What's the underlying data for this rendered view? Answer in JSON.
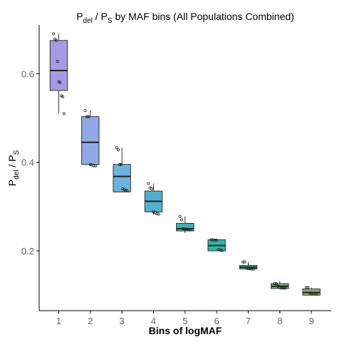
{
  "chart_data": {
    "type": "boxplot",
    "title": {
      "main": "P",
      "sub1": "del",
      "mid": " / P",
      "sub2": "S",
      "rest": " by MAF bins (All Populations Combined)"
    },
    "ylabel": {
      "main": "P",
      "sub1": "del",
      "mid": " / P",
      "sub2": "S"
    },
    "xlabel": "Bins of logMAF",
    "categories": [
      "1",
      "2",
      "3",
      "4",
      "5",
      "6",
      "7",
      "8",
      "9"
    ],
    "ylim": [
      0.065,
      0.71
    ],
    "yticks": [
      0.2,
      0.4,
      0.6
    ],
    "ytick_labels": [
      "0.2",
      "0.4",
      "0.6"
    ],
    "grid": false,
    "legend": "none",
    "boxes": [
      {
        "category": "1",
        "whisker_low": 0.51,
        "q1": 0.562,
        "median": 0.607,
        "q3": 0.675,
        "whisker_high": 0.69,
        "color": "#A49BE2"
      },
      {
        "category": "2",
        "whisker_low": 0.392,
        "q1": 0.395,
        "median": 0.445,
        "q3": 0.503,
        "whisker_high": 0.517,
        "color": "#8FA9E4"
      },
      {
        "category": "3",
        "whisker_low": 0.333,
        "q1": 0.333,
        "median": 0.368,
        "q3": 0.395,
        "whisker_high": 0.433,
        "color": "#6DB3DD"
      },
      {
        "category": "4",
        "whisker_low": 0.282,
        "q1": 0.288,
        "median": 0.312,
        "q3": 0.335,
        "whisker_high": 0.352,
        "color": "#4FB0D0"
      },
      {
        "category": "5",
        "whisker_low": 0.24,
        "q1": 0.245,
        "median": 0.25,
        "q3": 0.262,
        "whisker_high": 0.278,
        "color": "#38B3B3"
      },
      {
        "category": "6",
        "whisker_low": 0.2,
        "q1": 0.2,
        "median": 0.212,
        "q3": 0.225,
        "whisker_high": 0.225,
        "color": "#33B2A6"
      },
      {
        "category": "7",
        "whisker_low": 0.158,
        "q1": 0.159,
        "median": 0.163,
        "q3": 0.167,
        "whisker_high": 0.175,
        "color": "#3FB492"
      },
      {
        "category": "8",
        "whisker_low": 0.115,
        "q1": 0.115,
        "median": 0.12,
        "q3": 0.126,
        "whisker_high": 0.131,
        "color": "#6DB47D"
      },
      {
        "category": "9",
        "whisker_low": 0.099,
        "q1": 0.1,
        "median": 0.106,
        "q3": 0.114,
        "whisker_high": 0.117,
        "color": "#8DB06C"
      }
    ],
    "points": [
      [
        0.69,
        0.678,
        0.675,
        0.628,
        0.582,
        0.58,
        0.55,
        0.548,
        0.51
      ],
      [
        0.517,
        0.503,
        0.503,
        0.395,
        0.394,
        0.392,
        0.392
      ],
      [
        0.433,
        0.428,
        0.395,
        0.395,
        0.34,
        0.338,
        0.336,
        0.336
      ],
      [
        0.352,
        0.342,
        0.34,
        0.288,
        0.286,
        0.284,
        0.283
      ],
      [
        0.278,
        0.27,
        0.25,
        0.249,
        0.249,
        0.248,
        0.248
      ],
      [
        0.225,
        0.225,
        0.224,
        0.224,
        0.203,
        0.202,
        0.201
      ],
      [
        0.175,
        0.175,
        0.161,
        0.16,
        0.16,
        0.159,
        0.159
      ],
      [
        0.126,
        0.126,
        0.12,
        0.117,
        0.116,
        0.116,
        0.116
      ],
      [
        0.117,
        0.117,
        0.105,
        0.104,
        0.103,
        0.103,
        0.102
      ]
    ]
  }
}
